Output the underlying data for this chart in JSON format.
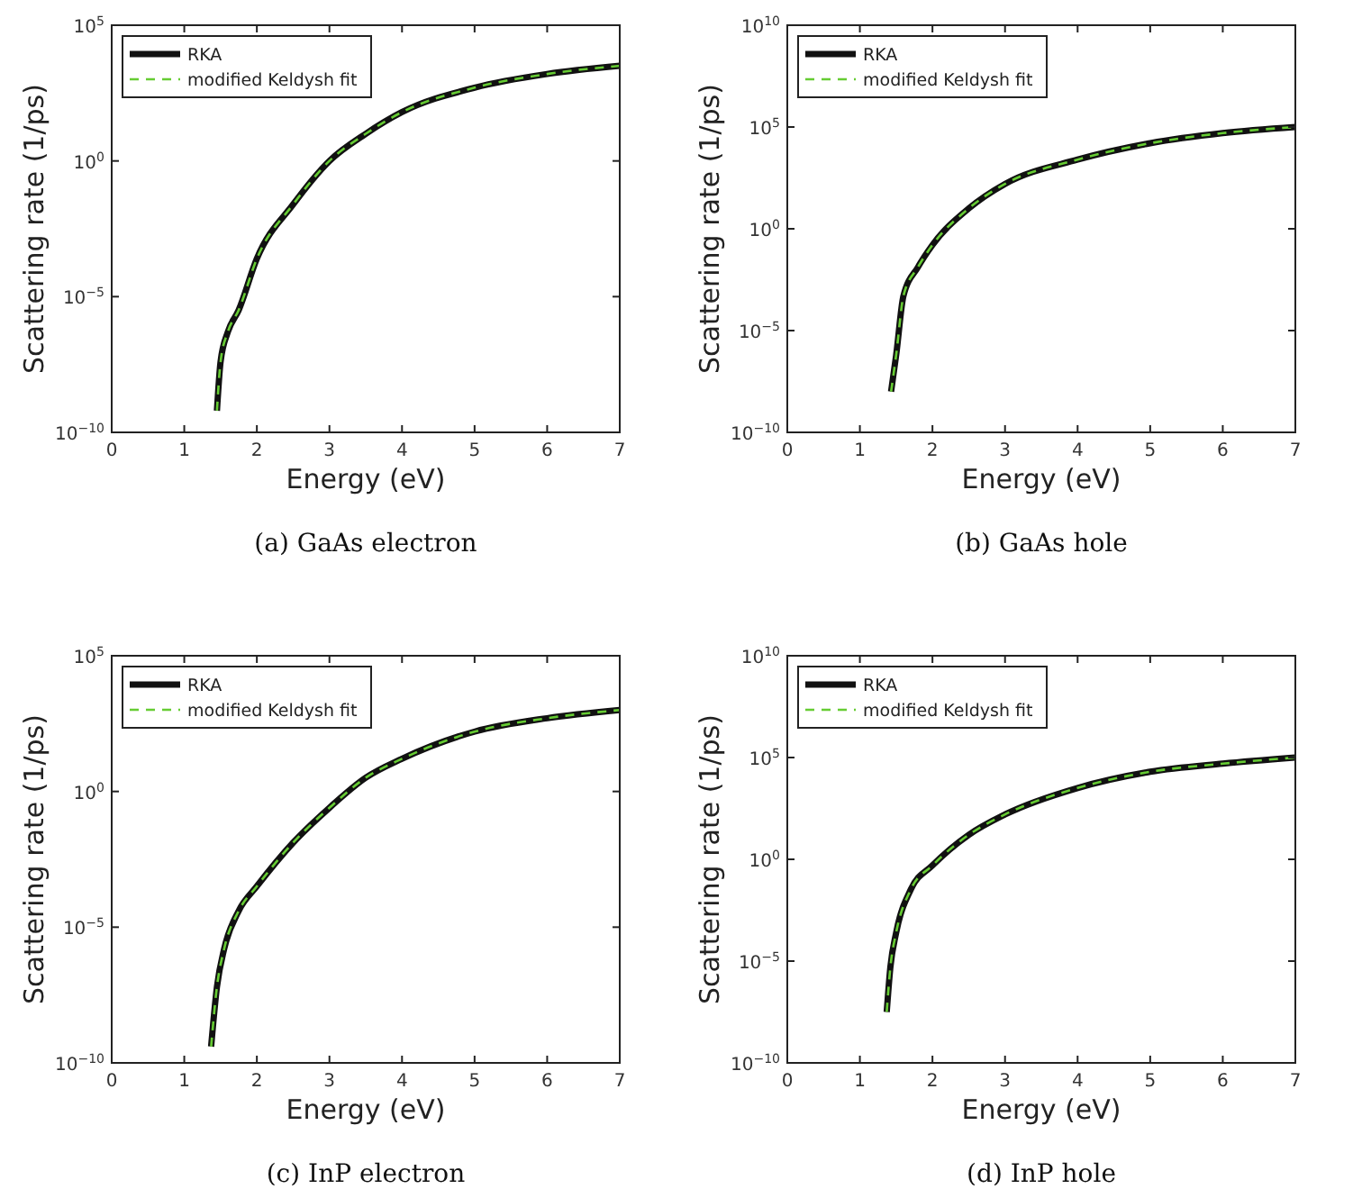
{
  "chart_data": [
    {
      "type": "line",
      "title": "(a)  GaAs electron",
      "xlabel": "Energy (eV)",
      "ylabel": "Scattering rate (1/ps)",
      "log": "y",
      "legend": "top left",
      "xlim": [
        0,
        7
      ],
      "xticks": [
        0,
        1,
        2,
        3,
        4,
        5,
        6,
        7
      ],
      "ylim": [
        1e-10,
        100000
      ],
      "yticks": [
        {
          "value": 1e-10,
          "label": "10$^{−10}$"
        },
        {
          "value": 1e-05,
          "label": "10$^{−5}$"
        },
        {
          "value": 1,
          "label": "10$^{0}$"
        },
        {
          "value": 100000,
          "label": "10$^{5}$"
        }
      ],
      "x": [
        1.45,
        1.5,
        1.6,
        1.75,
        2,
        2.5,
        3,
        3.5,
        4,
        5,
        6,
        7
      ],
      "series": [
        {
          "name": "RKA",
          "color": "#111111",
          "line_style": "solid",
          "values": [
            6.3e-10,
            4e-08,
            5e-07,
            3.2e-06,
            0.00025,
            0.025,
            1,
            10,
            63,
            500,
            1600,
            3200
          ]
        },
        {
          "name": "modified Keldysh fit",
          "color": "#66cc33",
          "line_style": "dashed",
          "values": [
            6.3e-10,
            4e-08,
            5e-07,
            3.2e-06,
            0.00025,
            0.025,
            1,
            10,
            63,
            500,
            1600,
            3200
          ]
        }
      ]
    },
    {
      "type": "line",
      "title": "(b)  GaAs hole",
      "xlabel": "Energy (eV)",
      "ylabel": "Scattering rate (1/ps)",
      "log": "y",
      "legend": "top left",
      "xlim": [
        0,
        7
      ],
      "xticks": [
        0,
        1,
        2,
        3,
        4,
        5,
        6,
        7
      ],
      "ylim": [
        1e-10,
        10000000000
      ],
      "yticks": [
        {
          "value": 1e-10,
          "label": "10$^{−10}$"
        },
        {
          "value": 1e-05,
          "label": "10$^{−5}$"
        },
        {
          "value": 1,
          "label": "10$^{0}$"
        },
        {
          "value": 100000,
          "label": "10$^{5}$"
        },
        {
          "value": 10000000000,
          "label": "10$^{10}$"
        }
      ],
      "x": [
        1.43,
        1.5,
        1.6,
        1.8,
        2,
        2.5,
        3,
        4,
        5,
        6,
        7
      ],
      "series": [
        {
          "name": "RKA",
          "color": "#111111",
          "line_style": "solid",
          "values": [
            1e-08,
            6.3e-07,
            0.0005,
            0.013,
            0.16,
            10,
            160,
            2500,
            16000,
            50000,
            100000
          ]
        },
        {
          "name": "modified Keldysh fit",
          "color": "#66cc33",
          "line_style": "dashed",
          "values": [
            1e-08,
            6.3e-07,
            0.0005,
            0.013,
            0.16,
            10,
            160,
            2500,
            16000,
            50000,
            100000
          ]
        }
      ]
    },
    {
      "type": "line",
      "title": "(c)  InP electron",
      "xlabel": "Energy (eV)",
      "ylabel": "Scattering rate (1/ps)",
      "log": "y",
      "legend": "top left",
      "xlim": [
        0,
        7
      ],
      "xticks": [
        0,
        1,
        2,
        3,
        4,
        5,
        6,
        7
      ],
      "ylim": [
        1e-10,
        100000
      ],
      "yticks": [
        {
          "value": 1e-10,
          "label": "10$^{−10}$"
        },
        {
          "value": 1e-05,
          "label": "10$^{−5}$"
        },
        {
          "value": 1,
          "label": "10$^{0}$"
        },
        {
          "value": 100000,
          "label": "10$^{5}$"
        }
      ],
      "x": [
        1.37,
        1.45,
        1.55,
        1.75,
        2,
        2.5,
        3,
        3.5,
        4,
        5,
        6,
        7
      ],
      "series": [
        {
          "name": "RKA",
          "color": "#111111",
          "line_style": "solid",
          "values": [
            4e-10,
            6.3e-08,
            1.6e-06,
            4e-05,
            0.00032,
            0.013,
            0.25,
            3.2,
            16,
            160,
            500,
            1000
          ]
        },
        {
          "name": "modified Keldysh fit",
          "color": "#66cc33",
          "line_style": "dashed",
          "values": [
            4e-10,
            6.3e-08,
            1.6e-06,
            4e-05,
            0.00032,
            0.013,
            0.25,
            3.2,
            16,
            160,
            500,
            1000
          ]
        }
      ]
    },
    {
      "type": "line",
      "title": "(d)  InP hole",
      "xlabel": "Energy (eV)",
      "ylabel": "Scattering rate (1/ps)",
      "log": "y",
      "legend": "top left",
      "xlim": [
        0,
        7
      ],
      "xticks": [
        0,
        1,
        2,
        3,
        4,
        5,
        6,
        7
      ],
      "ylim": [
        1e-10,
        10000000000
      ],
      "yticks": [
        {
          "value": 1e-10,
          "label": "10$^{−10}$"
        },
        {
          "value": 1e-05,
          "label": "10$^{−5}$"
        },
        {
          "value": 1,
          "label": "10$^{0}$"
        },
        {
          "value": 100000,
          "label": "10$^{5}$"
        },
        {
          "value": 10000000000,
          "label": "10$^{10}$"
        }
      ],
      "x": [
        1.37,
        1.42,
        1.5,
        1.7,
        2,
        2.5,
        3,
        4,
        5,
        6,
        7
      ],
      "series": [
        {
          "name": "RKA",
          "color": "#111111",
          "line_style": "solid",
          "values": [
            3.2e-08,
            5e-06,
            0.00025,
            0.032,
            0.5,
            16,
            160,
            3200,
            20000,
            50000,
            100000
          ]
        },
        {
          "name": "modified Keldysh fit",
          "color": "#66cc33",
          "line_style": "dashed",
          "values": [
            3.2e-08,
            5e-06,
            0.00025,
            0.032,
            0.5,
            16,
            160,
            3200,
            20000,
            50000,
            100000
          ]
        }
      ]
    }
  ]
}
